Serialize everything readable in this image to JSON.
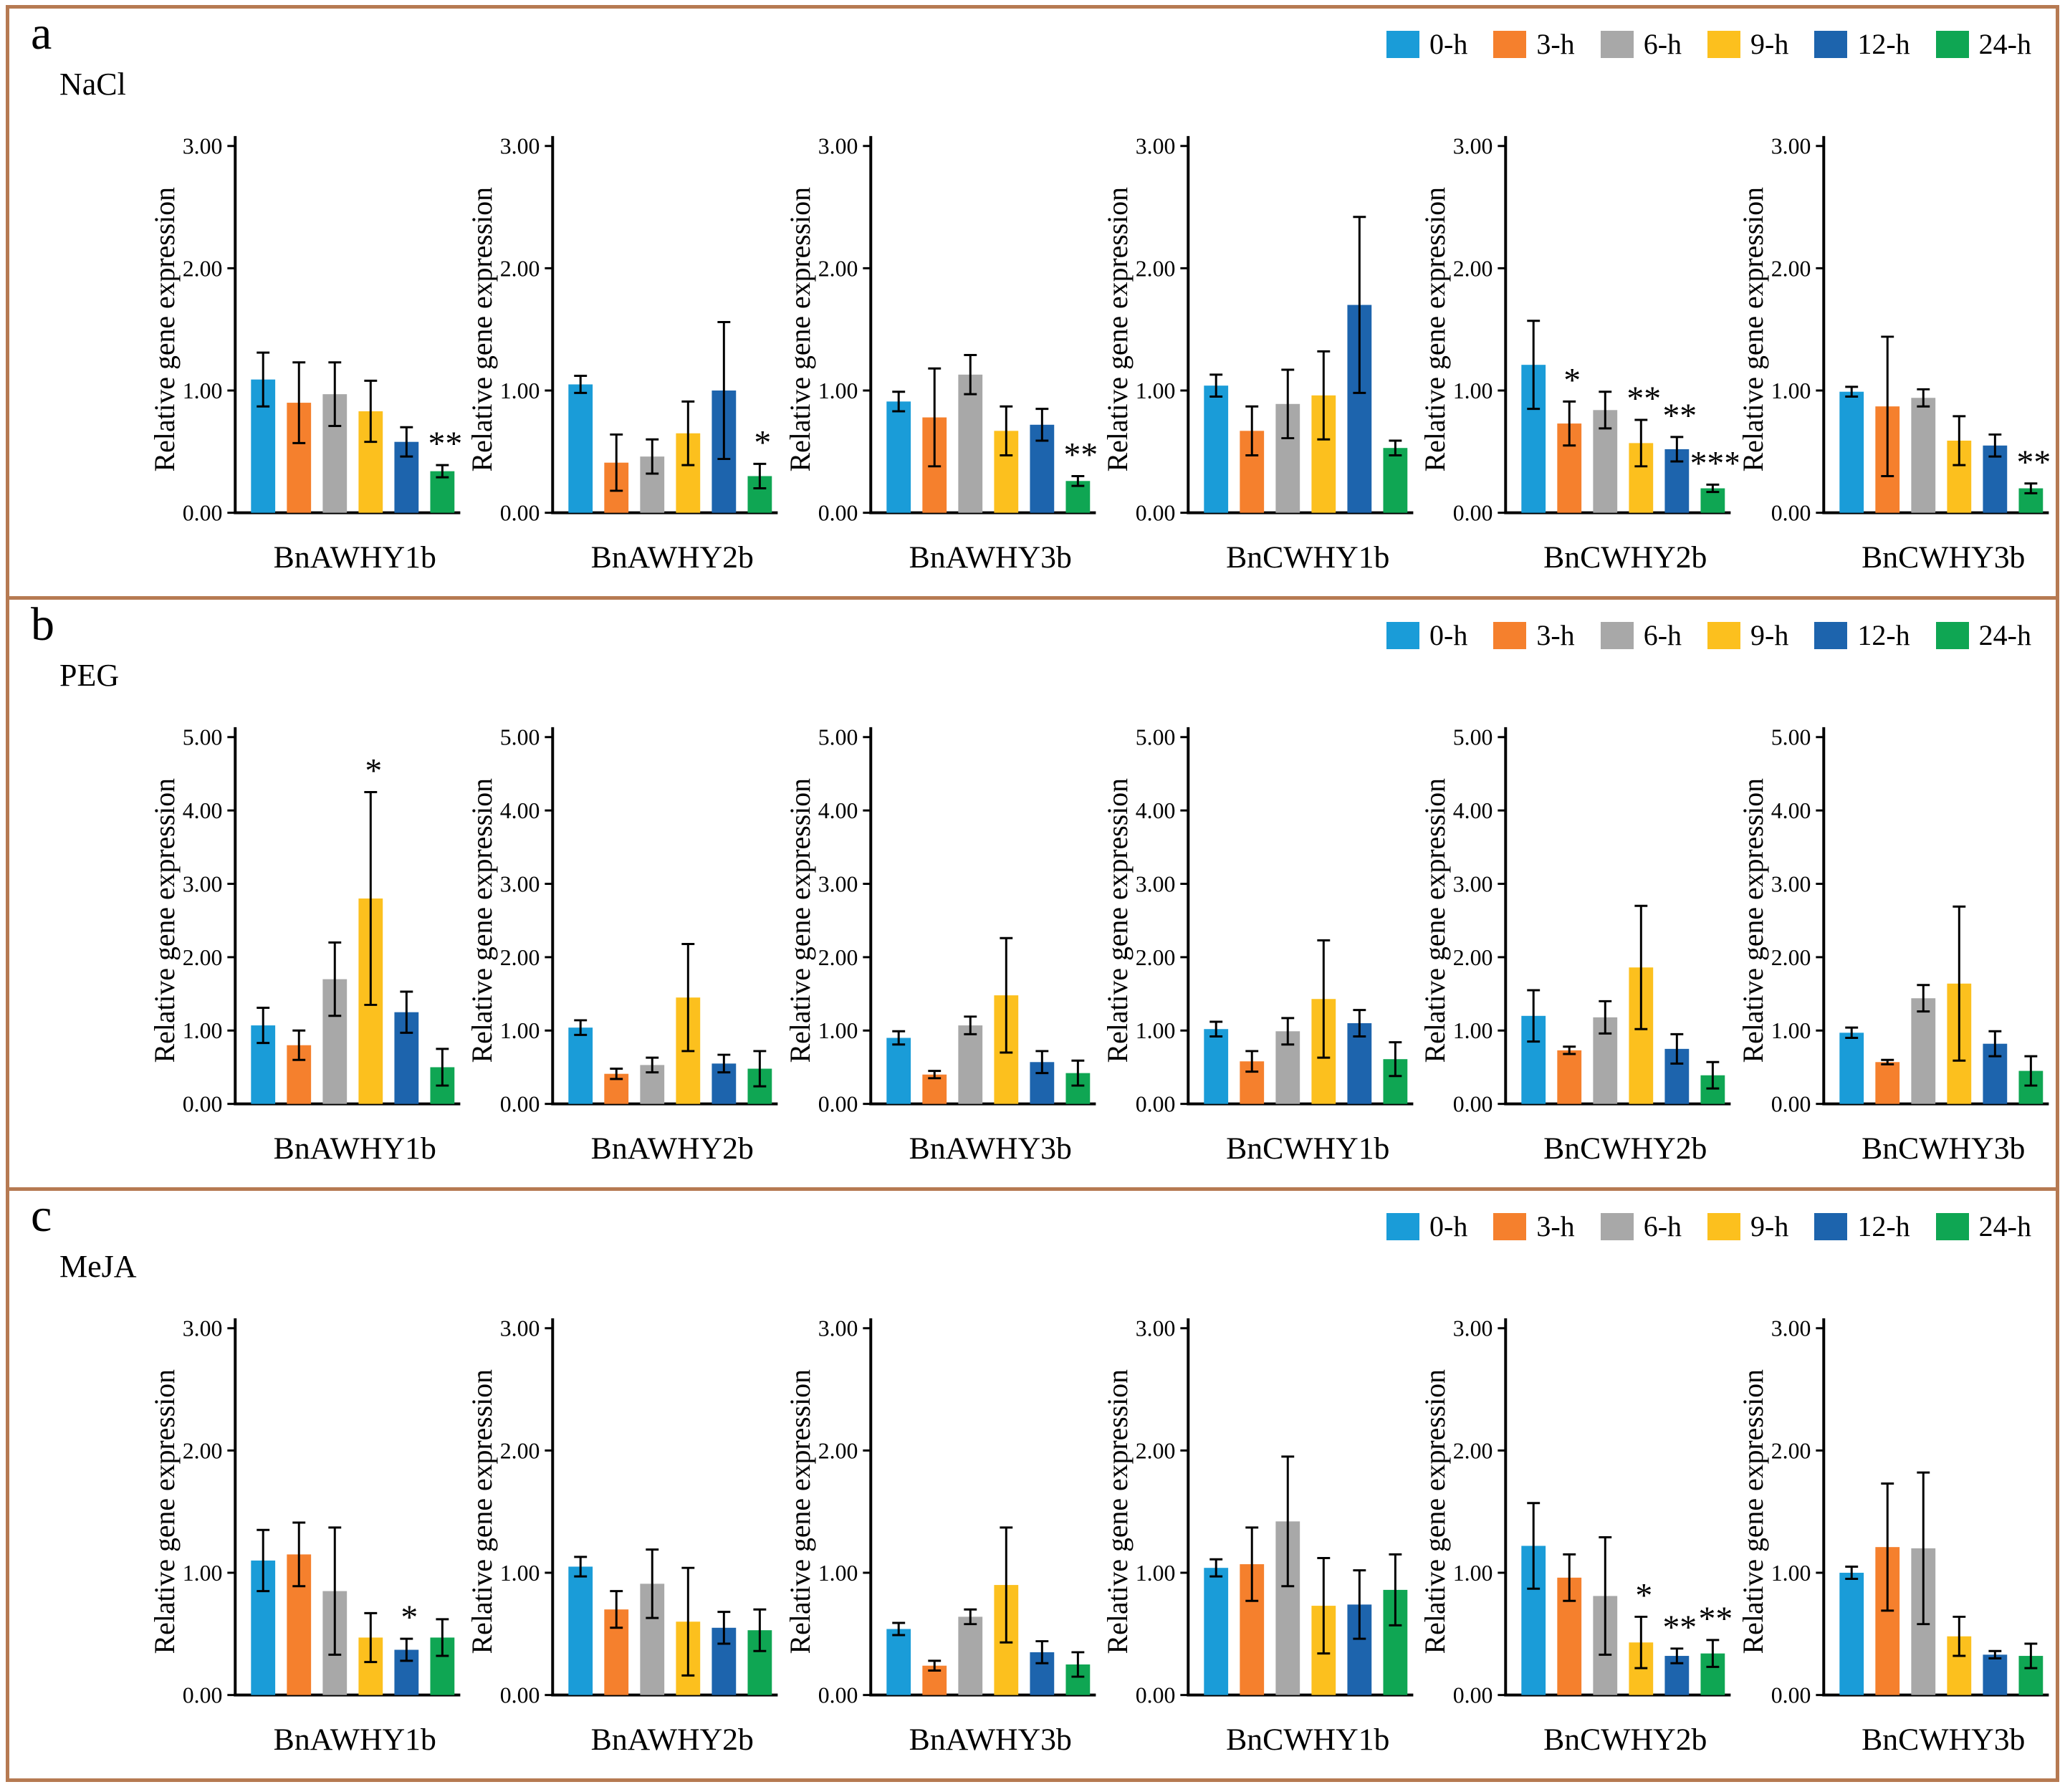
{
  "figure": {
    "border_color": "#b67a52",
    "background": "#ffffff"
  },
  "axis": {
    "y_label": "Relative gene expression"
  },
  "legend": {
    "items": [
      {
        "label": "0-h",
        "color": "#1a9cd8"
      },
      {
        "label": "3-h",
        "color": "#f5802d"
      },
      {
        "label": "6-h",
        "color": "#a8a8a8"
      },
      {
        "label": "9-h",
        "color": "#fcc01e"
      },
      {
        "label": "12-h",
        "color": "#1d64ad"
      },
      {
        "label": "24-h",
        "color": "#0fa653"
      }
    ]
  },
  "chart_data": [
    {
      "panel": "a",
      "treatment": "NaCl",
      "type": "bar",
      "ylim": [
        0,
        3
      ],
      "yticks": [
        "0.00",
        "1.00",
        "2.00",
        "3.00"
      ],
      "categories": [
        "0-h",
        "3-h",
        "6-h",
        "9-h",
        "12-h",
        "24-h"
      ],
      "ylabel": "Relative gene expression",
      "grid": false,
      "legend_position": "top-right",
      "charts": [
        {
          "gene": "BnAWHY1b",
          "values": [
            1.09,
            0.9,
            0.97,
            0.83,
            0.58,
            0.34
          ],
          "errors": [
            0.22,
            0.33,
            0.26,
            0.25,
            0.12,
            0.05
          ],
          "sig": [
            "",
            "",
            "",
            "",
            "",
            "**"
          ]
        },
        {
          "gene": "BnAWHY2b",
          "values": [
            1.05,
            0.41,
            0.46,
            0.65,
            1.0,
            0.3
          ],
          "errors": [
            0.07,
            0.23,
            0.14,
            0.26,
            0.56,
            0.1
          ],
          "sig": [
            "",
            "",
            "",
            "",
            "",
            "*"
          ]
        },
        {
          "gene": "BnAWHY3b",
          "values": [
            0.91,
            0.78,
            1.13,
            0.67,
            0.72,
            0.26
          ],
          "errors": [
            0.08,
            0.4,
            0.16,
            0.2,
            0.13,
            0.04
          ],
          "sig": [
            "",
            "",
            "",
            "",
            "",
            "**"
          ]
        },
        {
          "gene": "BnCWHY1b",
          "values": [
            1.04,
            0.67,
            0.89,
            0.96,
            1.7,
            0.53
          ],
          "errors": [
            0.09,
            0.2,
            0.28,
            0.36,
            0.72,
            0.06
          ],
          "sig": [
            "",
            "",
            "",
            "",
            "",
            ""
          ]
        },
        {
          "gene": "BnCWHY2b",
          "values": [
            1.21,
            0.73,
            0.84,
            0.57,
            0.52,
            0.2
          ],
          "errors": [
            0.36,
            0.18,
            0.15,
            0.19,
            0.1,
            0.03
          ],
          "sig": [
            "",
            "*",
            "",
            "**",
            "**",
            "***"
          ]
        },
        {
          "gene": "BnCWHY3b",
          "values": [
            0.99,
            0.87,
            0.94,
            0.59,
            0.55,
            0.2
          ],
          "errors": [
            0.04,
            0.57,
            0.07,
            0.2,
            0.09,
            0.04
          ],
          "sig": [
            "",
            "",
            "",
            "",
            "",
            "**"
          ]
        }
      ]
    },
    {
      "panel": "b",
      "treatment": "PEG",
      "type": "bar",
      "ylim": [
        0,
        5
      ],
      "yticks": [
        "0.00",
        "1.00",
        "2.00",
        "3.00",
        "4.00",
        "5.00"
      ],
      "categories": [
        "0-h",
        "3-h",
        "6-h",
        "9-h",
        "12-h",
        "24-h"
      ],
      "ylabel": "Relative gene expression",
      "grid": false,
      "legend_position": "top-right",
      "charts": [
        {
          "gene": "BnAWHY1b",
          "values": [
            1.07,
            0.8,
            1.7,
            2.8,
            1.25,
            0.5
          ],
          "errors": [
            0.24,
            0.2,
            0.5,
            1.45,
            0.28,
            0.25
          ],
          "sig": [
            "",
            "",
            "",
            "*",
            "",
            ""
          ]
        },
        {
          "gene": "BnAWHY2b",
          "values": [
            1.04,
            0.41,
            0.53,
            1.45,
            0.55,
            0.48
          ],
          "errors": [
            0.1,
            0.07,
            0.1,
            0.73,
            0.12,
            0.24
          ],
          "sig": [
            "",
            "",
            "",
            "",
            "",
            ""
          ]
        },
        {
          "gene": "BnAWHY3b",
          "values": [
            0.9,
            0.4,
            1.07,
            1.48,
            0.57,
            0.42
          ],
          "errors": [
            0.09,
            0.05,
            0.12,
            0.78,
            0.15,
            0.17
          ],
          "sig": [
            "",
            "",
            "",
            "",
            "",
            ""
          ]
        },
        {
          "gene": "BnCWHY1b",
          "values": [
            1.02,
            0.58,
            0.99,
            1.43,
            1.1,
            0.61
          ],
          "errors": [
            0.1,
            0.14,
            0.18,
            0.8,
            0.18,
            0.23
          ],
          "sig": [
            "",
            "",
            "",
            "",
            "",
            ""
          ]
        },
        {
          "gene": "BnCWHY2b",
          "values": [
            1.2,
            0.73,
            1.18,
            1.86,
            0.75,
            0.39
          ],
          "errors": [
            0.35,
            0.05,
            0.22,
            0.84,
            0.2,
            0.18
          ],
          "sig": [
            "",
            "",
            "",
            "",
            "",
            ""
          ]
        },
        {
          "gene": "BnCWHY3b",
          "values": [
            0.97,
            0.57,
            1.44,
            1.64,
            0.82,
            0.45
          ],
          "errors": [
            0.07,
            0.03,
            0.18,
            1.05,
            0.17,
            0.2
          ],
          "sig": [
            "",
            "",
            "",
            "",
            "",
            ""
          ]
        }
      ]
    },
    {
      "panel": "c",
      "treatment": "MeJA",
      "type": "bar",
      "ylim": [
        0,
        3
      ],
      "yticks": [
        "0.00",
        "1.00",
        "2.00",
        "3.00"
      ],
      "categories": [
        "0-h",
        "3-h",
        "6-h",
        "9-h",
        "12-h",
        "24-h"
      ],
      "ylabel": "Relative gene expression",
      "grid": false,
      "legend_position": "top-right",
      "charts": [
        {
          "gene": "BnAWHY1b",
          "values": [
            1.1,
            1.15,
            0.85,
            0.47,
            0.37,
            0.47
          ],
          "errors": [
            0.25,
            0.26,
            0.52,
            0.2,
            0.09,
            0.15
          ],
          "sig": [
            "",
            "",
            "",
            "",
            "*",
            ""
          ]
        },
        {
          "gene": "BnAWHY2b",
          "values": [
            1.05,
            0.7,
            0.91,
            0.6,
            0.55,
            0.53
          ],
          "errors": [
            0.08,
            0.15,
            0.28,
            0.44,
            0.13,
            0.17
          ],
          "sig": [
            "",
            "",
            "",
            "",
            "",
            ""
          ]
        },
        {
          "gene": "BnAWHY3b",
          "values": [
            0.54,
            0.24,
            0.64,
            0.9,
            0.35,
            0.25
          ],
          "errors": [
            0.05,
            0.04,
            0.06,
            0.47,
            0.09,
            0.1
          ],
          "sig": [
            "",
            "",
            "",
            "",
            "",
            ""
          ]
        },
        {
          "gene": "BnCWHY1b",
          "values": [
            1.04,
            1.07,
            1.42,
            0.73,
            0.74,
            0.86
          ],
          "errors": [
            0.07,
            0.3,
            0.53,
            0.39,
            0.28,
            0.29
          ],
          "sig": [
            "",
            "",
            "",
            "",
            "",
            ""
          ]
        },
        {
          "gene": "BnCWHY2b",
          "values": [
            1.22,
            0.96,
            0.81,
            0.43,
            0.32,
            0.34
          ],
          "errors": [
            0.35,
            0.19,
            0.48,
            0.21,
            0.06,
            0.11
          ],
          "sig": [
            "",
            "",
            "",
            "*",
            "**",
            "**"
          ]
        },
        {
          "gene": "BnCWHY3b",
          "values": [
            1.0,
            1.21,
            1.2,
            0.48,
            0.33,
            0.32
          ],
          "errors": [
            0.05,
            0.52,
            0.62,
            0.16,
            0.03,
            0.1
          ],
          "sig": [
            "",
            "",
            "",
            "",
            "",
            ""
          ]
        }
      ]
    }
  ]
}
